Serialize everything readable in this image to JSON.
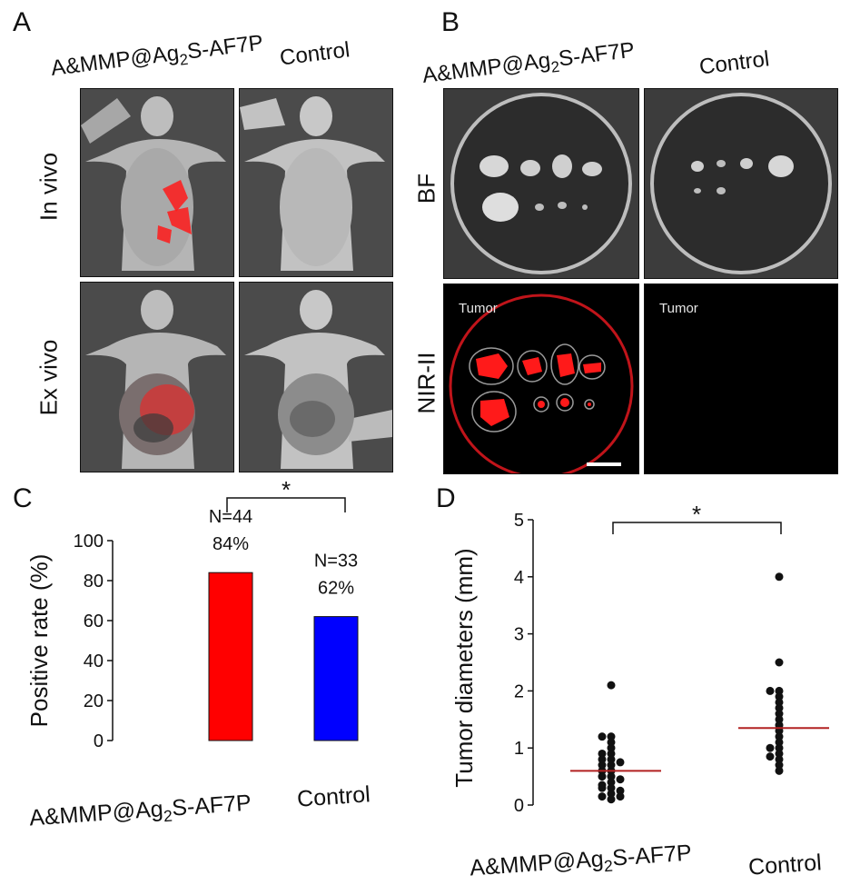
{
  "panelA": {
    "letter": "A",
    "col_probe": "A&MMP@Ag",
    "col_probe_sub": "2",
    "col_probe_tail": "S-AF7P",
    "col_control": "Control",
    "row_invivo": "In vivo",
    "row_exvivo": "Ex vivo"
  },
  "panelB": {
    "letter": "B",
    "col_probe": "A&MMP@Ag",
    "col_probe_sub": "2",
    "col_probe_tail": "S-AF7P",
    "col_control": "Control",
    "row_bf": "BF",
    "row_nir": "NIR-II",
    "tumor_label_left": "Tumor",
    "tumor_label_right": "Tumor"
  },
  "panelC": {
    "letter": "C"
  },
  "panelD": {
    "letter": "D"
  },
  "colors": {
    "probe_bar": "#ff0000",
    "control_bar": "#0000ff",
    "median_line": "#b22222",
    "fluorescence": "#ff1a1a"
  },
  "chart_data": [
    {
      "type": "bar",
      "categories": [
        "A&MMP@Ag2S-AF7P",
        "Control"
      ],
      "categories_display": [
        {
          "main": "A&MMP@Ag",
          "sub": "2",
          "tail": "S-AF7P"
        },
        {
          "main": "Control",
          "sub": "",
          "tail": ""
        }
      ],
      "values": [
        84,
        62
      ],
      "bar_labels_n": [
        "N=44",
        "N=33"
      ],
      "bar_labels_pct": [
        "84%",
        "62%"
      ],
      "ylabel": "Positive rate (%)",
      "ylim": [
        0,
        100
      ],
      "yticks": [
        0,
        20,
        40,
        60,
        80,
        100
      ],
      "significance": "*",
      "grid": false
    },
    {
      "type": "scatter",
      "categories": [
        "A&MMP@Ag2S-AF7P",
        "Control"
      ],
      "categories_display": [
        {
          "main": "A&MMP@Ag",
          "sub": "2",
          "tail": "S-AF7P"
        },
        {
          "main": "Control",
          "sub": "",
          "tail": ""
        }
      ],
      "series": [
        {
          "name": "",
          "values": [
            2.1,
            1.2,
            1.2,
            1.1,
            1.0,
            0.9,
            0.9,
            0.8,
            0.8,
            0.75,
            0.7,
            0.7,
            0.6,
            0.6,
            0.5,
            0.5,
            0.45,
            0.4,
            0.35,
            0.3,
            0.3,
            0.25,
            0.2,
            0.15,
            0.15,
            0.1
          ]
        },
        {
          "name": "",
          "values": [
            4.0,
            2.5,
            2.0,
            2.0,
            1.9,
            1.8,
            1.7,
            1.6,
            1.5,
            1.4,
            1.3,
            1.2,
            1.1,
            1.0,
            1.0,
            0.9,
            0.85,
            0.8,
            0.7,
            0.6
          ]
        }
      ],
      "medians": [
        0.6,
        1.35
      ],
      "ylabel": "Tumor diameters (mm)",
      "ylim": [
        0,
        5
      ],
      "yticks": [
        0,
        1,
        2,
        3,
        4,
        5
      ],
      "significance": "*",
      "grid": false
    }
  ]
}
